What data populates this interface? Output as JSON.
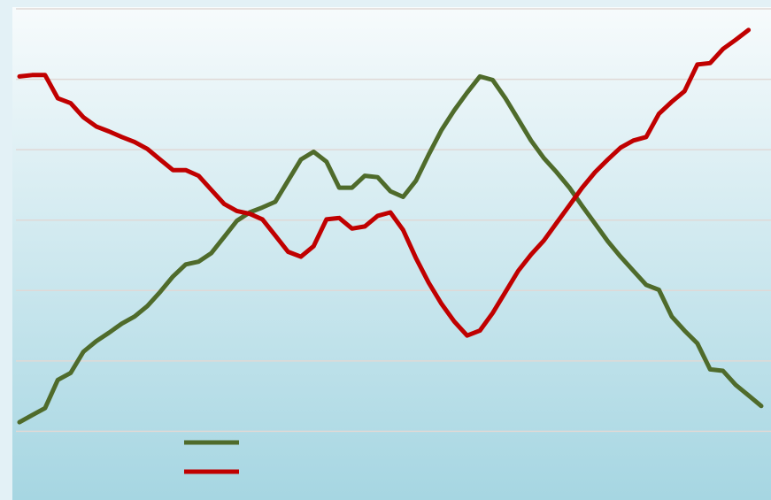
{
  "chart_data": {
    "type": "line",
    "title": "",
    "xlabel": "",
    "ylabel": "",
    "grid": true,
    "y_gridlines": 7,
    "ylim": [
      0,
      7
    ],
    "legend_position": "bottom-left",
    "colors": {
      "frame_background": "#e3f1f6",
      "plot_background_top": "#f7fbfc",
      "plot_background_bottom": "#a6d6e2",
      "gridline": "#e0d9d6",
      "green_series": "#4f6b2b",
      "red_series": "#c00000"
    },
    "series": [
      {
        "color": "#4f6b2b",
        "points": [
          [
            0,
            1.13
          ],
          [
            0.5,
            1.23
          ],
          [
            1,
            1.33
          ],
          [
            1.5,
            1.73
          ],
          [
            2,
            1.83
          ],
          [
            2.5,
            2.13
          ],
          [
            3,
            2.28
          ],
          [
            3.5,
            2.4
          ],
          [
            4,
            2.53
          ],
          [
            4.5,
            2.63
          ],
          [
            5,
            2.78
          ],
          [
            5.5,
            2.98
          ],
          [
            6,
            3.2
          ],
          [
            6.5,
            3.37
          ],
          [
            7,
            3.41
          ],
          [
            7.5,
            3.53
          ],
          [
            8,
            3.76
          ],
          [
            8.5,
            3.99
          ],
          [
            9,
            4.11
          ],
          [
            9.5,
            4.18
          ],
          [
            10,
            4.26
          ],
          [
            10.5,
            4.56
          ],
          [
            11,
            4.86
          ],
          [
            11.5,
            4.97
          ],
          [
            12,
            4.83
          ],
          [
            12.5,
            4.46
          ],
          [
            13,
            4.46
          ],
          [
            13.5,
            4.63
          ],
          [
            14,
            4.61
          ],
          [
            14.5,
            4.41
          ],
          [
            15,
            4.33
          ],
          [
            15.5,
            4.56
          ],
          [
            16,
            4.93
          ],
          [
            16.5,
            5.28
          ],
          [
            17,
            5.56
          ],
          [
            17.5,
            5.81
          ],
          [
            18,
            6.04
          ],
          [
            18.5,
            5.99
          ],
          [
            19,
            5.73
          ],
          [
            19.5,
            5.43
          ],
          [
            20,
            5.13
          ],
          [
            20.5,
            4.88
          ],
          [
            21,
            4.68
          ],
          [
            21.5,
            4.46
          ],
          [
            22,
            4.2
          ],
          [
            22.5,
            3.95
          ],
          [
            23,
            3.7
          ],
          [
            23.5,
            3.48
          ],
          [
            24,
            3.28
          ],
          [
            24.5,
            3.08
          ],
          [
            25,
            3.01
          ],
          [
            25.5,
            2.63
          ],
          [
            26,
            2.43
          ],
          [
            26.5,
            2.25
          ],
          [
            27,
            1.88
          ],
          [
            27.5,
            1.86
          ],
          [
            28,
            1.66
          ],
          [
            28.5,
            1.51
          ],
          [
            29,
            1.36
          ]
        ]
      },
      {
        "color": "#c00000",
        "points": [
          [
            0,
            6.04
          ],
          [
            0.5,
            6.06
          ],
          [
            1,
            6.06
          ],
          [
            1.5,
            5.73
          ],
          [
            2,
            5.66
          ],
          [
            2.5,
            5.46
          ],
          [
            3,
            5.33
          ],
          [
            3.5,
            5.26
          ],
          [
            4,
            5.18
          ],
          [
            4.5,
            5.11
          ],
          [
            5,
            5.01
          ],
          [
            5.5,
            4.86
          ],
          [
            6,
            4.71
          ],
          [
            6.5,
            4.71
          ],
          [
            7,
            4.63
          ],
          [
            7.5,
            4.43
          ],
          [
            8,
            4.23
          ],
          [
            8.5,
            4.13
          ],
          [
            9,
            4.09
          ],
          [
            9.5,
            4.01
          ],
          [
            10,
            3.78
          ],
          [
            10.5,
            3.55
          ],
          [
            11,
            3.48
          ],
          [
            11.5,
            3.63
          ],
          [
            12,
            4.01
          ],
          [
            12.5,
            4.03
          ],
          [
            13,
            3.88
          ],
          [
            13.5,
            3.91
          ],
          [
            14,
            4.06
          ],
          [
            14.5,
            4.11
          ],
          [
            15,
            3.86
          ],
          [
            15.5,
            3.46
          ],
          [
            16,
            3.11
          ],
          [
            16.5,
            2.81
          ],
          [
            17,
            2.56
          ],
          [
            17.5,
            2.36
          ],
          [
            18,
            2.43
          ],
          [
            18.5,
            2.68
          ],
          [
            19,
            2.98
          ],
          [
            19.5,
            3.28
          ],
          [
            20,
            3.51
          ],
          [
            20.5,
            3.71
          ],
          [
            21,
            3.96
          ],
          [
            21.5,
            4.21
          ],
          [
            22,
            4.46
          ],
          [
            22.5,
            4.68
          ],
          [
            23,
            4.86
          ],
          [
            23.5,
            5.03
          ],
          [
            24,
            5.13
          ],
          [
            24.5,
            5.18
          ],
          [
            25,
            5.51
          ],
          [
            25.5,
            5.68
          ],
          [
            26,
            5.83
          ],
          [
            26.5,
            6.21
          ],
          [
            27,
            6.23
          ],
          [
            27.5,
            6.43
          ],
          [
            28,
            6.56
          ],
          [
            28.5,
            6.7
          ]
        ]
      }
    ]
  }
}
